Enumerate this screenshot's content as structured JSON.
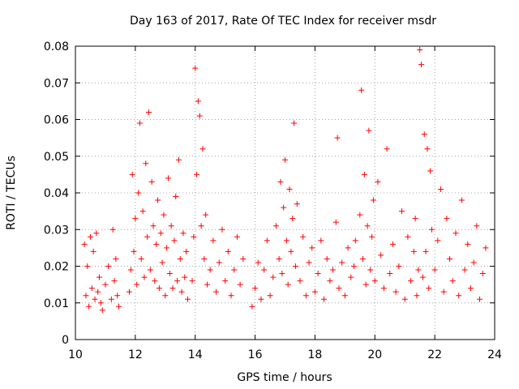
{
  "chart_data": {
    "type": "scatter",
    "title": "Day 163 of 2017, Rate Of TEC Index for receiver msdr",
    "xlabel": "GPS time / hours",
    "ylabel": "ROTI / TECUs",
    "xlim": [
      10,
      24
    ],
    "ylim": [
      0,
      0.08
    ],
    "xticks": [
      10,
      12,
      14,
      16,
      18,
      20,
      22,
      24
    ],
    "xtick_labels": [
      "10",
      "12",
      "14",
      "16",
      "18",
      "20",
      "22",
      "24"
    ],
    "yticks": [
      0,
      0.01,
      0.02,
      0.03,
      0.04,
      0.05,
      0.06,
      0.07,
      0.08
    ],
    "ytick_labels": [
      "0",
      "0.01",
      "0.02",
      "0.03",
      "0.04",
      "0.05",
      "0.06",
      "0.07",
      "0.08"
    ],
    "grid": true,
    "marker": "+",
    "color": "#ff0000",
    "series": [
      {
        "name": "ROTI",
        "x": [
          10.3,
          10.35,
          10.4,
          10.45,
          10.5,
          10.55,
          10.6,
          10.65,
          10.7,
          10.75,
          10.8,
          10.85,
          10.9,
          11.0,
          11.1,
          11.2,
          11.25,
          11.3,
          11.35,
          11.4,
          11.45,
          11.8,
          11.85,
          11.9,
          11.95,
          12.0,
          12.05,
          12.1,
          12.15,
          12.2,
          12.25,
          12.3,
          12.35,
          12.4,
          12.45,
          12.5,
          12.55,
          12.6,
          12.65,
          12.7,
          12.75,
          12.8,
          12.85,
          12.9,
          12.95,
          13.0,
          13.05,
          13.1,
          13.15,
          13.2,
          13.25,
          13.3,
          13.35,
          13.4,
          13.45,
          13.5,
          13.55,
          13.6,
          13.65,
          13.7,
          13.75,
          13.9,
          13.95,
          14.0,
          14.05,
          14.1,
          14.15,
          14.2,
          14.25,
          14.3,
          14.35,
          14.4,
          14.5,
          14.6,
          14.7,
          14.8,
          14.9,
          15.0,
          15.1,
          15.2,
          15.3,
          15.4,
          15.5,
          15.6,
          15.9,
          16.0,
          16.1,
          16.2,
          16.3,
          16.4,
          16.5,
          16.6,
          16.7,
          16.8,
          16.85,
          16.9,
          16.95,
          17.0,
          17.05,
          17.1,
          17.15,
          17.2,
          17.25,
          17.3,
          17.35,
          17.4,
          17.5,
          17.6,
          17.7,
          17.8,
          17.9,
          18.0,
          18.1,
          18.2,
          18.3,
          18.4,
          18.5,
          18.6,
          18.7,
          18.75,
          18.8,
          18.9,
          19.0,
          19.1,
          19.2,
          19.3,
          19.35,
          19.5,
          19.55,
          19.6,
          19.65,
          19.7,
          19.75,
          19.8,
          19.85,
          19.9,
          19.95,
          20.0,
          20.1,
          20.2,
          20.3,
          20.4,
          20.5,
          20.6,
          20.7,
          20.8,
          20.9,
          21.0,
          21.1,
          21.2,
          21.3,
          21.35,
          21.4,
          21.45,
          21.5,
          21.55,
          21.6,
          21.65,
          21.7,
          21.75,
          21.8,
          21.85,
          21.9,
          22.0,
          22.1,
          22.2,
          22.3,
          22.4,
          22.5,
          22.6,
          22.7,
          22.8,
          22.9,
          23.0,
          23.1,
          23.2,
          23.3,
          23.4,
          23.5,
          23.6,
          23.7
        ],
        "y": [
          0.026,
          0.012,
          0.02,
          0.009,
          0.028,
          0.014,
          0.024,
          0.011,
          0.029,
          0.013,
          0.017,
          0.01,
          0.008,
          0.015,
          0.02,
          0.011,
          0.03,
          0.016,
          0.022,
          0.012,
          0.009,
          0.013,
          0.019,
          0.045,
          0.024,
          0.033,
          0.015,
          0.04,
          0.059,
          0.022,
          0.035,
          0.017,
          0.048,
          0.028,
          0.062,
          0.019,
          0.043,
          0.031,
          0.016,
          0.026,
          0.038,
          0.014,
          0.029,
          0.021,
          0.034,
          0.012,
          0.025,
          0.044,
          0.018,
          0.031,
          0.014,
          0.027,
          0.039,
          0.016,
          0.049,
          0.022,
          0.013,
          0.029,
          0.017,
          0.024,
          0.011,
          0.016,
          0.028,
          0.074,
          0.045,
          0.065,
          0.061,
          0.031,
          0.052,
          0.022,
          0.034,
          0.015,
          0.019,
          0.027,
          0.013,
          0.021,
          0.03,
          0.016,
          0.024,
          0.012,
          0.019,
          0.028,
          0.015,
          0.022,
          0.009,
          0.014,
          0.021,
          0.011,
          0.019,
          0.027,
          0.012,
          0.017,
          0.031,
          0.022,
          0.043,
          0.018,
          0.036,
          0.049,
          0.027,
          0.015,
          0.041,
          0.024,
          0.033,
          0.059,
          0.02,
          0.037,
          0.016,
          0.028,
          0.012,
          0.021,
          0.025,
          0.013,
          0.018,
          0.027,
          0.011,
          0.022,
          0.016,
          0.019,
          0.032,
          0.055,
          0.014,
          0.021,
          0.012,
          0.025,
          0.017,
          0.02,
          0.027,
          0.034,
          0.068,
          0.022,
          0.045,
          0.015,
          0.031,
          0.057,
          0.019,
          0.028,
          0.038,
          0.016,
          0.043,
          0.023,
          0.014,
          0.052,
          0.018,
          0.026,
          0.013,
          0.02,
          0.035,
          0.011,
          0.028,
          0.016,
          0.024,
          0.033,
          0.012,
          0.019,
          0.079,
          0.075,
          0.017,
          0.056,
          0.024,
          0.052,
          0.014,
          0.046,
          0.03,
          0.019,
          0.027,
          0.041,
          0.013,
          0.033,
          0.022,
          0.016,
          0.029,
          0.012,
          0.038,
          0.019,
          0.026,
          0.014,
          0.021,
          0.031,
          0.011,
          0.018,
          0.025
        ]
      }
    ]
  }
}
